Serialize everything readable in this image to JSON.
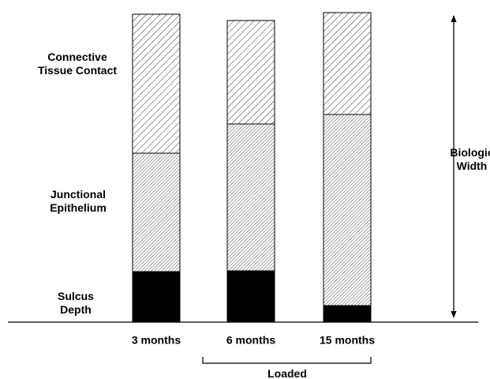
{
  "chart_data": {
    "type": "stacked-bar",
    "categories": [
      "3 months",
      "6 months",
      "15 months"
    ],
    "series": [
      {
        "name": "Sulcus Depth",
        "color": "#000000",
        "pattern": "solid",
        "values": [
          64,
          65,
          21
        ]
      },
      {
        "name": "Junctional Epithelium",
        "color": "#000000",
        "pattern": "hatch-dense",
        "values": [
          150,
          186,
          242
        ]
      },
      {
        "name": "Connective Tissue Contact",
        "color": "#000000",
        "pattern": "hatch-sparse",
        "values": [
          176,
          131,
          129
        ]
      }
    ],
    "ylim": [
      0,
      400
    ],
    "annotations": [
      "Biologic Width",
      "Loaded"
    ]
  }
}
